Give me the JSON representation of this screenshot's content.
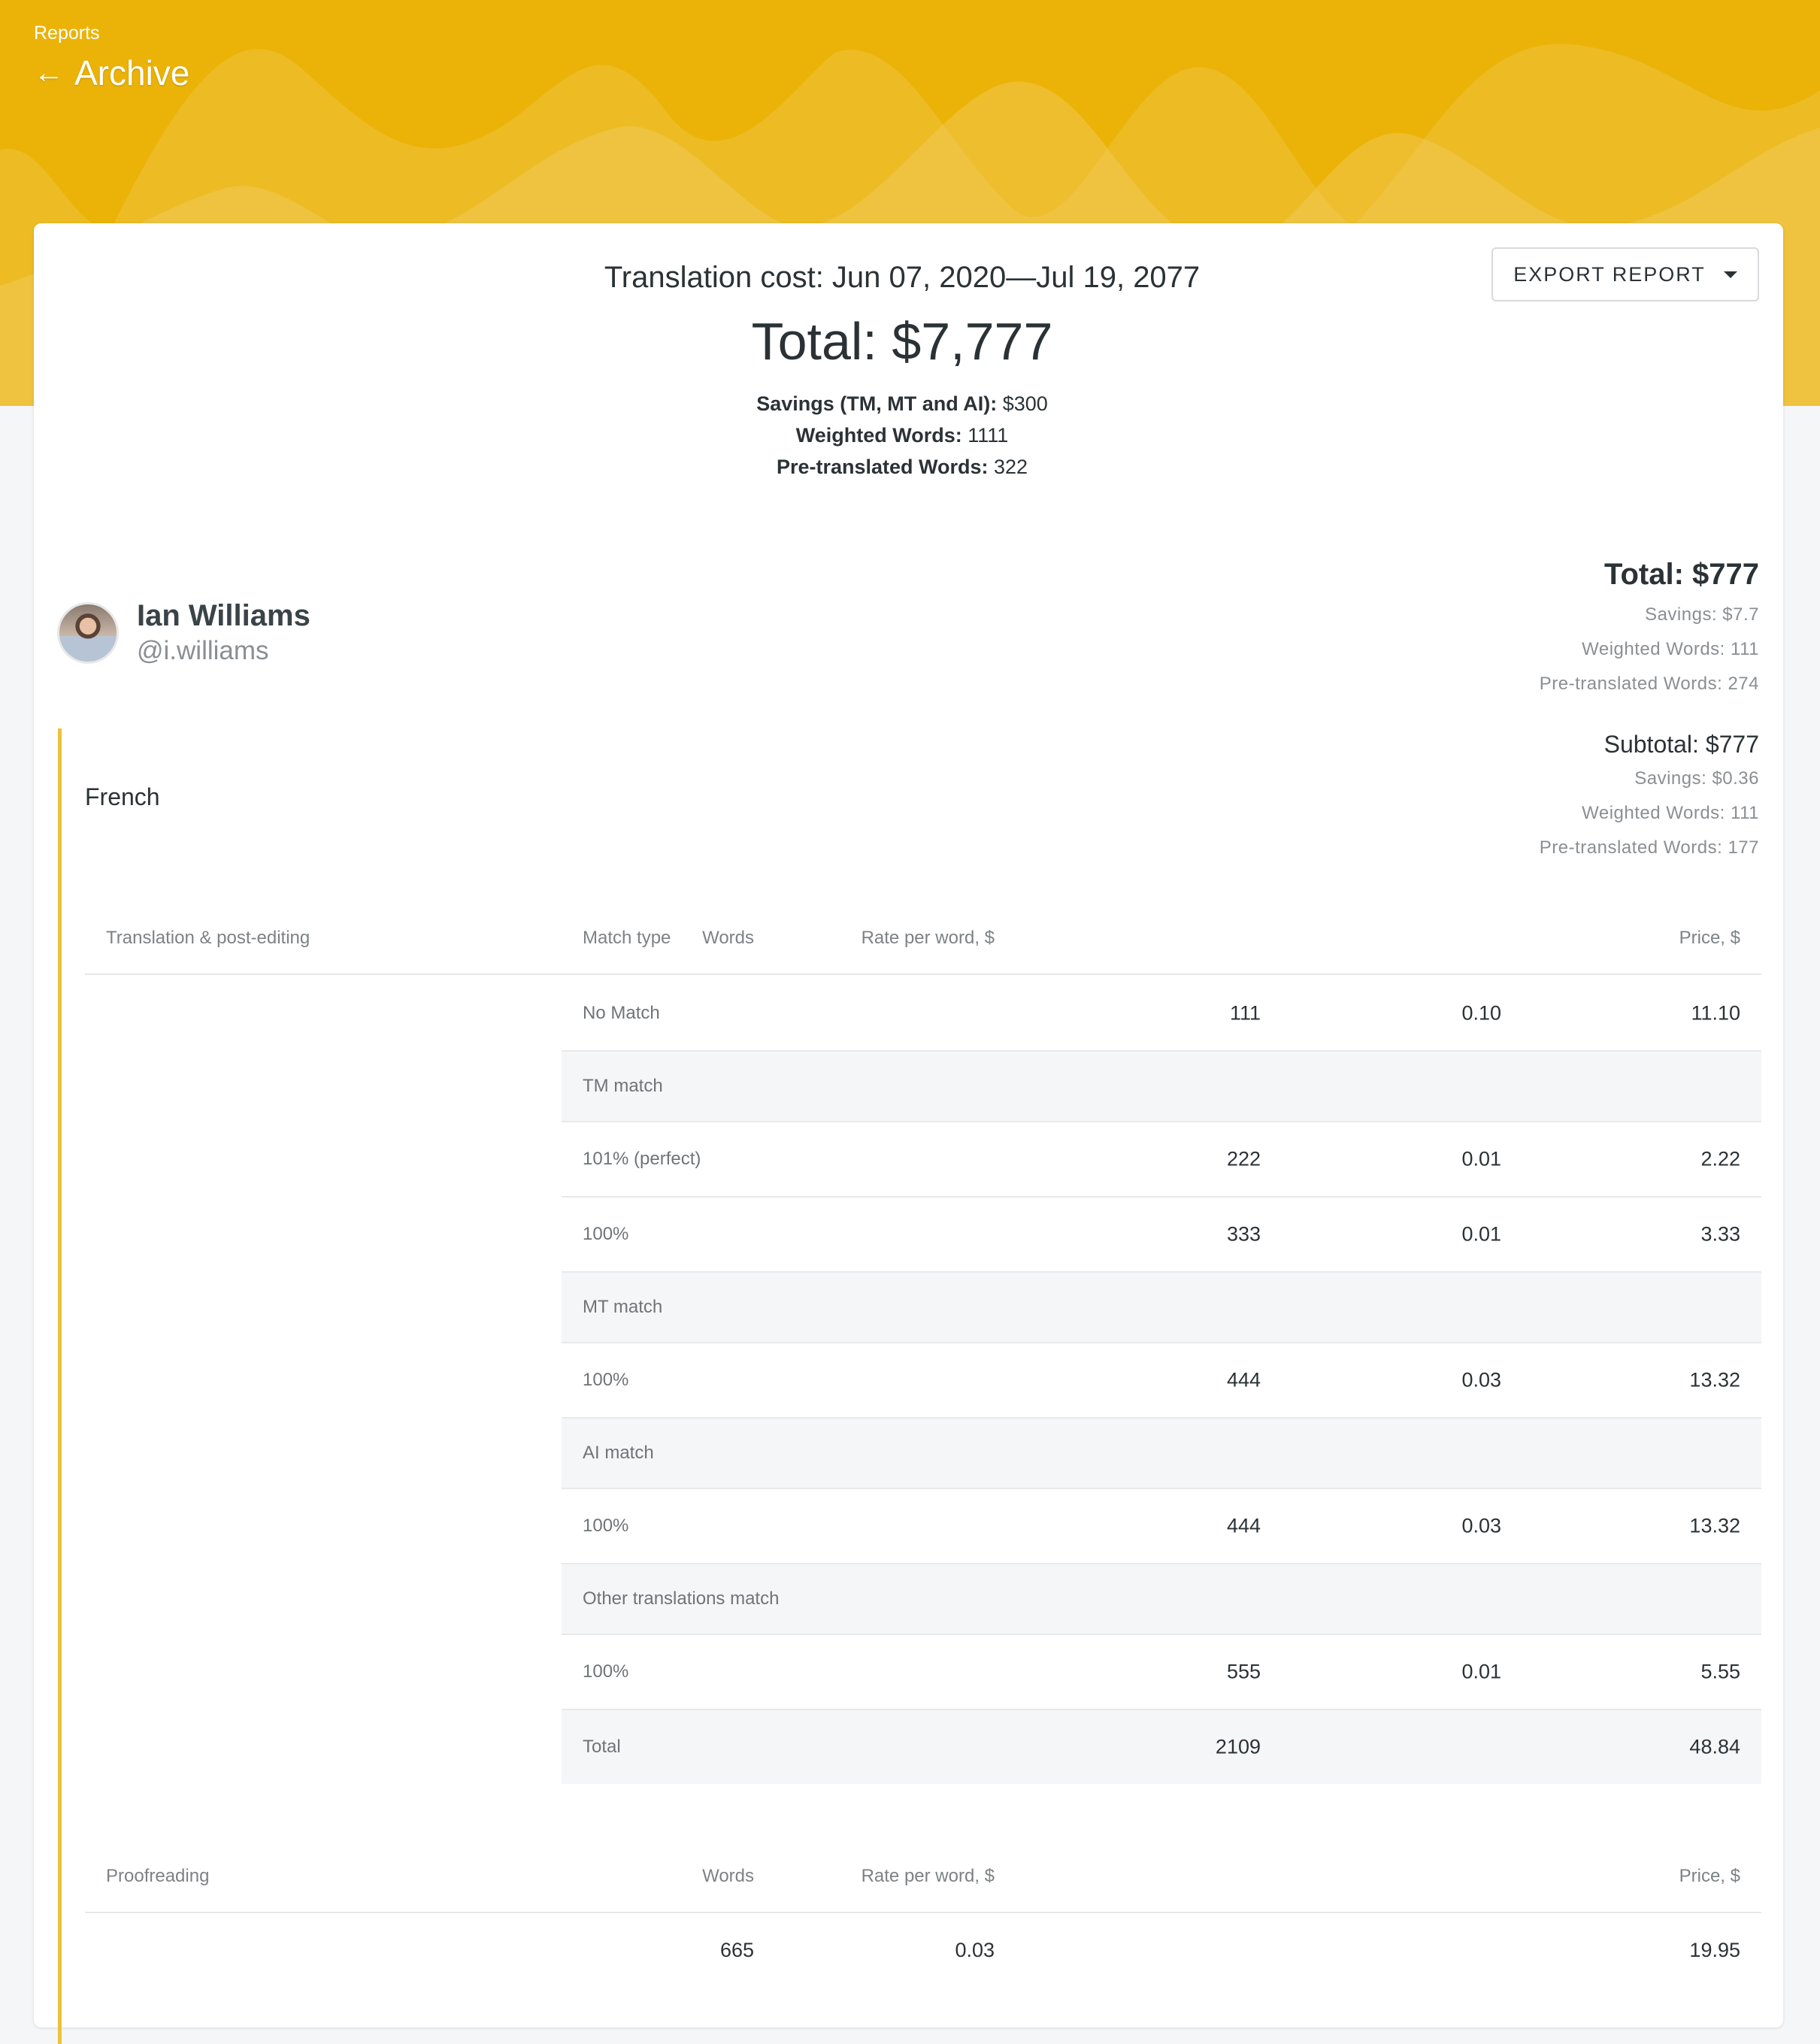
{
  "colors": {
    "brand": "#ebb307",
    "accent_bar": "#ebc33a"
  },
  "header": {
    "breadcrumb": "Reports",
    "title": "Archive",
    "back_icon": "arrow-left-icon"
  },
  "report": {
    "title": "Translation cost: Jun 07, 2020—Jul 19, 2077",
    "total": "Total: $7,777",
    "summary": [
      {
        "label": "Savings (TM, MT and AI):",
        "value": " $300"
      },
      {
        "label": "Weighted Words:",
        "value": " 1111"
      },
      {
        "label": "Pre-translated Words:",
        "value": " 322"
      }
    ],
    "export_label": "EXPORT REPORT"
  },
  "user": {
    "name": "Ian Williams",
    "handle": "@i.williams",
    "total": "Total: $777",
    "savings": "Savings: $7.7",
    "weighted": "Weighted Words: 111",
    "pretranslated": "Pre-translated Words: 274"
  },
  "language": {
    "name": "French",
    "subtotal": "Subtotal: $777",
    "savings": "Savings: $0.36",
    "weighted": "Weighted Words: 111",
    "pretranslated": "Pre-translated Words: 177"
  },
  "tep_table": {
    "headers": [
      "Translation & post-editing",
      "Match type",
      "Words",
      "Rate per word, $",
      "Price, $"
    ],
    "rows": [
      {
        "type": "row",
        "label": "No Match",
        "words": "111",
        "rate": "0.10",
        "price": "11.10"
      },
      {
        "type": "group",
        "label": "TM match"
      },
      {
        "type": "row",
        "label": "101% (perfect)",
        "words": "222",
        "rate": "0.01",
        "price": "2.22"
      },
      {
        "type": "row",
        "label": "100%",
        "words": "333",
        "rate": "0.01",
        "price": "3.33"
      },
      {
        "type": "group",
        "label": "MT match"
      },
      {
        "type": "row",
        "label": "100%",
        "words": "444",
        "rate": "0.03",
        "price": "13.32"
      },
      {
        "type": "group",
        "label": "AI match"
      },
      {
        "type": "row",
        "label": "100%",
        "words": "444",
        "rate": "0.03",
        "price": "13.32"
      },
      {
        "type": "group",
        "label": "Other translations match"
      },
      {
        "type": "row",
        "label": "100%",
        "words": "555",
        "rate": "0.01",
        "price": "5.55"
      },
      {
        "type": "total",
        "label": "Total",
        "words": "2109",
        "rate": "",
        "price": "48.84"
      }
    ]
  },
  "proof_table": {
    "headers": [
      "Proofreading",
      "Words",
      "Rate per word, $",
      "Price, $"
    ],
    "row": {
      "words": "665",
      "rate": "0.03",
      "price": "19.95"
    }
  }
}
